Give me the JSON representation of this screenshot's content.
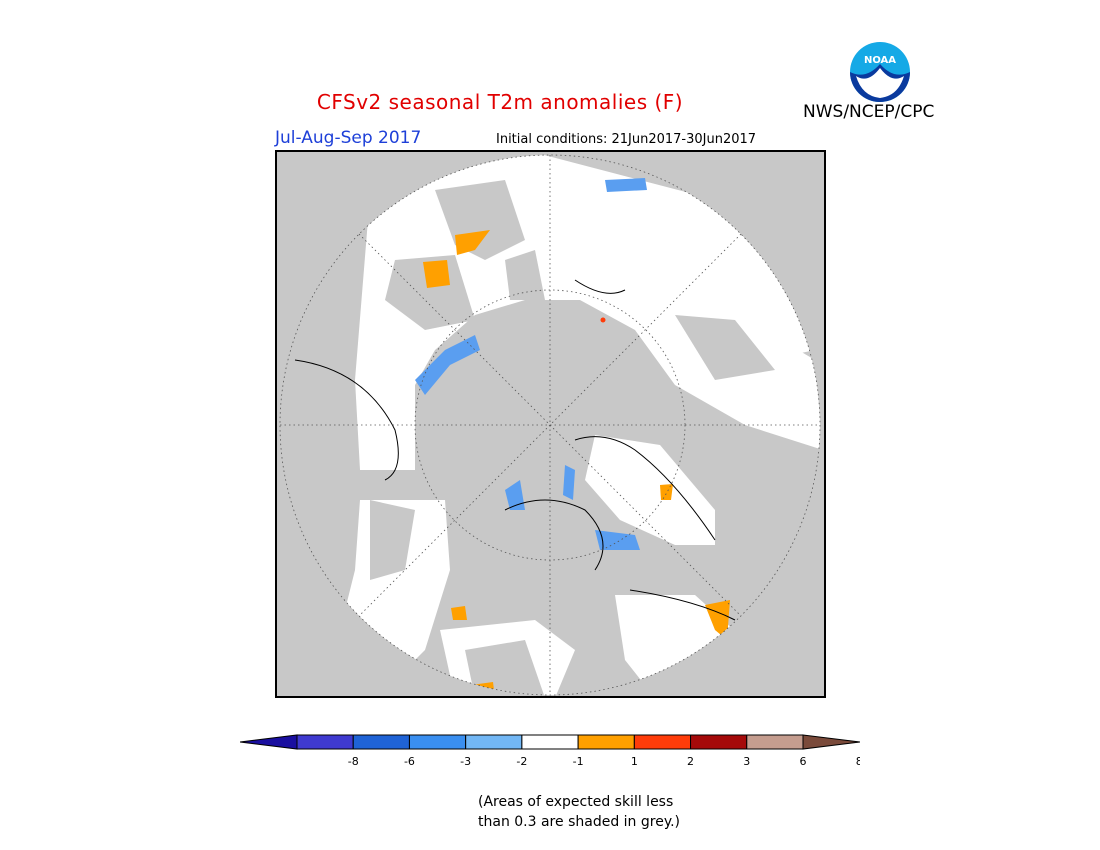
{
  "header": {
    "title": "CFSv2 seasonal T2m anomalies (F)",
    "period": "Jul-Aug-Sep 2017",
    "initial_conditions": "Initial conditions: 21Jun2017-30Jun2017",
    "agency": "NWS/NCEP/CPC",
    "logo_text": "NOAA"
  },
  "colorbar": {
    "colors": [
      "#1a0fa0",
      "#3f3ad0",
      "#1f63d6",
      "#3a8ff0",
      "#72b7f5",
      "#ffffff",
      "#ffa000",
      "#ff3c0a",
      "#a50a0a",
      "#c59d8f",
      "#7a4a3a"
    ],
    "ticks": [
      "-8",
      "-6",
      "-3",
      "-2",
      "-1",
      "1",
      "2",
      "3",
      "6",
      "8"
    ]
  },
  "footnote": {
    "line1": "(Areas of expected skill less",
    "line2": "than 0.3 are shaded in grey.)"
  },
  "palette": {
    "skill_grey": "#c8c8c8",
    "neutral": "#ffffff",
    "cold": "#5a9ef0",
    "warm": "#ffa000",
    "hot": "#ff3c0a"
  }
}
